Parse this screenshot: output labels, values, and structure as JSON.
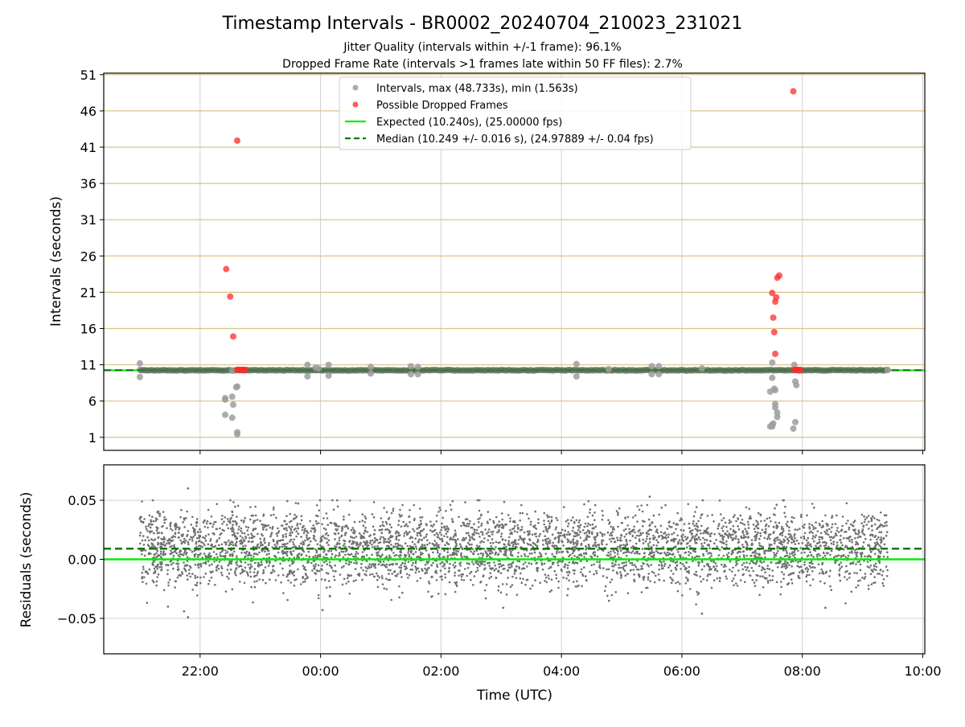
{
  "chart_data": [
    {
      "type": "scatter",
      "title": "Timestamp Intervals - BR0002_20240704_210023_231021",
      "subtitle_lines": [
        "Jitter Quality (intervals within +/-1 frame): 96.1%",
        "Dropped Frame Rate (intervals >1 frames late within 50 FF files): 2.7%"
      ],
      "xlabel": "",
      "ylabel": "Intervals (seconds)",
      "x_axis": "time (UTC), shared with residuals panel",
      "xlim": [
        "2024-07-04T20:24",
        "2024-07-05T10:02"
      ],
      "ylim": [
        -0.8,
        51.2
      ],
      "yticks": [
        "1",
        "6",
        "11",
        "16",
        "21",
        "26",
        "31",
        "36",
        "41",
        "46",
        "51"
      ],
      "ytick_values": [
        1,
        6,
        11,
        16,
        21,
        26,
        31,
        36,
        41,
        46,
        51
      ],
      "grid": true,
      "legend_position": "upper center",
      "legend": [
        {
          "label": "Intervals, max (48.733s), min (1.563s)",
          "marker": "dot",
          "color": "#9e9e9e"
        },
        {
          "label": "Possible Dropped Frames",
          "marker": "dot",
          "color": "#ff3b3b"
        },
        {
          "label": "Expected (10.240s), (25.00000 fps)",
          "marker": "line",
          "color": "#00ee00"
        },
        {
          "label": "Median (10.249 +/- 0.016 s), (24.97889 +/- 0.04 fps)",
          "marker": "dashed",
          "color": "#007a00"
        }
      ],
      "reference_lines": [
        {
          "name": "Expected",
          "y": 10.24,
          "color": "#00ee00",
          "style": "solid"
        },
        {
          "name": "Median",
          "y": 10.249,
          "color": "#007a00",
          "style": "dashed"
        }
      ],
      "series": [
        {
          "name": "Intervals",
          "baseline": {
            "x_start": "2024-07-04T21:00",
            "x_end": "2024-07-05T09:25",
            "y": 10.24
          },
          "points": [
            {
              "x": "2024-07-04T21:00",
              "y": 11.2
            },
            {
              "x": "2024-07-04T21:00",
              "y": 9.3
            },
            {
              "x": "2024-07-04T22:25",
              "y": 6.2
            },
            {
              "x": "2024-07-04T22:25",
              "y": 6.4
            },
            {
              "x": "2024-07-04T22:25",
              "y": 4.1
            },
            {
              "x": "2024-07-04T22:32",
              "y": 6.6
            },
            {
              "x": "2024-07-04T22:33",
              "y": 5.5
            },
            {
              "x": "2024-07-04T22:32",
              "y": 3.7
            },
            {
              "x": "2024-07-04T22:37",
              "y": 1.7
            },
            {
              "x": "2024-07-04T22:37",
              "y": 1.4
            },
            {
              "x": "2024-07-04T22:37",
              "y": 8.0
            },
            {
              "x": "2024-07-04T22:36",
              "y": 7.9
            },
            {
              "x": "2024-07-04T22:32",
              "y": 10.2
            },
            {
              "x": "2024-07-04T23:47",
              "y": 11.0
            },
            {
              "x": "2024-07-04T23:47",
              "y": 9.4
            },
            {
              "x": "2024-07-04T23:55",
              "y": 10.6
            },
            {
              "x": "2024-07-04T23:58",
              "y": 10.5
            },
            {
              "x": "2024-07-05T00:08",
              "y": 11.0
            },
            {
              "x": "2024-07-05T00:08",
              "y": 9.5
            },
            {
              "x": "2024-07-05T00:50",
              "y": 10.7
            },
            {
              "x": "2024-07-05T00:50",
              "y": 9.8
            },
            {
              "x": "2024-07-05T01:30",
              "y": 10.8
            },
            {
              "x": "2024-07-05T01:30",
              "y": 9.7
            },
            {
              "x": "2024-07-05T01:37",
              "y": 10.7
            },
            {
              "x": "2024-07-05T01:37",
              "y": 9.7
            },
            {
              "x": "2024-07-05T04:15",
              "y": 11.1
            },
            {
              "x": "2024-07-05T04:15",
              "y": 9.4
            },
            {
              "x": "2024-07-05T04:47",
              "y": 10.4
            },
            {
              "x": "2024-07-05T05:30",
              "y": 10.8
            },
            {
              "x": "2024-07-05T05:30",
              "y": 9.7
            },
            {
              "x": "2024-07-05T05:37",
              "y": 10.8
            },
            {
              "x": "2024-07-05T05:37",
              "y": 9.7
            },
            {
              "x": "2024-07-05T06:20",
              "y": 10.5
            },
            {
              "x": "2024-07-05T07:30",
              "y": 11.3
            },
            {
              "x": "2024-07-05T07:30",
              "y": 9.2
            },
            {
              "x": "2024-07-05T07:28",
              "y": 7.3
            },
            {
              "x": "2024-07-05T07:32",
              "y": 7.7
            },
            {
              "x": "2024-07-05T07:33",
              "y": 7.5
            },
            {
              "x": "2024-07-05T07:33",
              "y": 5.6
            },
            {
              "x": "2024-07-05T07:33",
              "y": 5.1
            },
            {
              "x": "2024-07-05T07:35",
              "y": 4.4
            },
            {
              "x": "2024-07-05T07:35",
              "y": 3.8
            },
            {
              "x": "2024-07-05T07:31",
              "y": 2.9
            },
            {
              "x": "2024-07-05T07:30",
              "y": 2.7
            },
            {
              "x": "2024-07-05T07:28",
              "y": 2.5
            },
            {
              "x": "2024-07-05T07:30",
              "y": 2.5
            },
            {
              "x": "2024-07-05T07:52",
              "y": 11.0
            },
            {
              "x": "2024-07-05T07:53",
              "y": 8.7
            },
            {
              "x": "2024-07-05T07:54",
              "y": 8.2
            },
            {
              "x": "2024-07-05T07:53",
              "y": 3.1
            },
            {
              "x": "2024-07-05T07:51",
              "y": 2.2
            },
            {
              "x": "2024-07-05T09:25",
              "y": 10.3
            }
          ]
        },
        {
          "name": "Possible Dropped Frames",
          "points": [
            {
              "x": "2024-07-04T22:26",
              "y": 24.2
            },
            {
              "x": "2024-07-04T22:30",
              "y": 20.4
            },
            {
              "x": "2024-07-04T22:33",
              "y": 14.9
            },
            {
              "x": "2024-07-04T22:37",
              "y": 41.9
            },
            {
              "x": "2024-07-04T22:37",
              "y": 10.3
            },
            {
              "x": "2024-07-04T22:39",
              "y": 10.3
            },
            {
              "x": "2024-07-04T22:41",
              "y": 10.3
            },
            {
              "x": "2024-07-04T22:43",
              "y": 10.3
            },
            {
              "x": "2024-07-04T22:45",
              "y": 10.3
            },
            {
              "x": "2024-07-05T07:30",
              "y": 20.9
            },
            {
              "x": "2024-07-05T07:31",
              "y": 17.5
            },
            {
              "x": "2024-07-05T07:32",
              "y": 15.5
            },
            {
              "x": "2024-07-05T07:33",
              "y": 12.5
            },
            {
              "x": "2024-07-05T07:33",
              "y": 19.7
            },
            {
              "x": "2024-07-05T07:34",
              "y": 20.3
            },
            {
              "x": "2024-07-05T07:35",
              "y": 23.0
            },
            {
              "x": "2024-07-05T07:37",
              "y": 23.3
            },
            {
              "x": "2024-07-05T07:51",
              "y": 48.7
            },
            {
              "x": "2024-07-05T07:52",
              "y": 10.3
            },
            {
              "x": "2024-07-05T07:54",
              "y": 10.3
            },
            {
              "x": "2024-07-05T07:56",
              "y": 10.3
            },
            {
              "x": "2024-07-05T07:58",
              "y": 10.3
            }
          ]
        }
      ]
    },
    {
      "type": "scatter",
      "title": "",
      "xlabel": "Time (UTC)",
      "ylabel": "Residuals (seconds)",
      "xlim": [
        "2024-07-04T20:24",
        "2024-07-05T10:02"
      ],
      "xticks": [
        "22:00",
        "00:00",
        "02:00",
        "04:00",
        "06:00",
        "08:00",
        "10:00"
      ],
      "xtick_values": [
        "2024-07-04T22:00",
        "2024-07-05T00:00",
        "2024-07-05T02:00",
        "2024-07-05T04:00",
        "2024-07-05T06:00",
        "2024-07-05T08:00",
        "2024-07-05T10:00"
      ],
      "ylim": [
        -0.08,
        0.08
      ],
      "yticks": [
        "0.05",
        "0.00",
        "−0.05"
      ],
      "ytick_values": [
        0.05,
        0.0,
        -0.05
      ],
      "grid": true,
      "reference_lines": [
        {
          "name": "Expected",
          "y": 0.0,
          "color": "#00ee00",
          "style": "solid"
        },
        {
          "name": "Median",
          "y": 0.009,
          "color": "#007a00",
          "style": "dashed"
        }
      ],
      "series": [
        {
          "name": "Residuals",
          "x_start": "2024-07-04T21:00",
          "x_end": "2024-07-05T09:25",
          "point_count_approx": 4300,
          "y_min": -0.049,
          "y_max": 0.06,
          "levels": [
            0.018,
            0.009,
            -0.009,
            0.027,
            0.0
          ],
          "sample_points": [
            {
              "x": "2024-07-04T21:48",
              "y": 0.06
            },
            {
              "x": "2024-07-04T21:48",
              "y": -0.049
            },
            {
              "x": "2024-07-04T21:44",
              "y": -0.044
            },
            {
              "x": "2024-07-04T21:28",
              "y": -0.04
            },
            {
              "x": "2024-07-05T00:02",
              "y": -0.043
            },
            {
              "x": "2024-07-05T06:20",
              "y": -0.046
            },
            {
              "x": "2024-07-05T05:28",
              "y": 0.053
            },
            {
              "x": "2024-07-05T08:23",
              "y": -0.041
            },
            {
              "x": "2024-07-05T03:02",
              "y": -0.041
            }
          ]
        }
      ]
    }
  ]
}
